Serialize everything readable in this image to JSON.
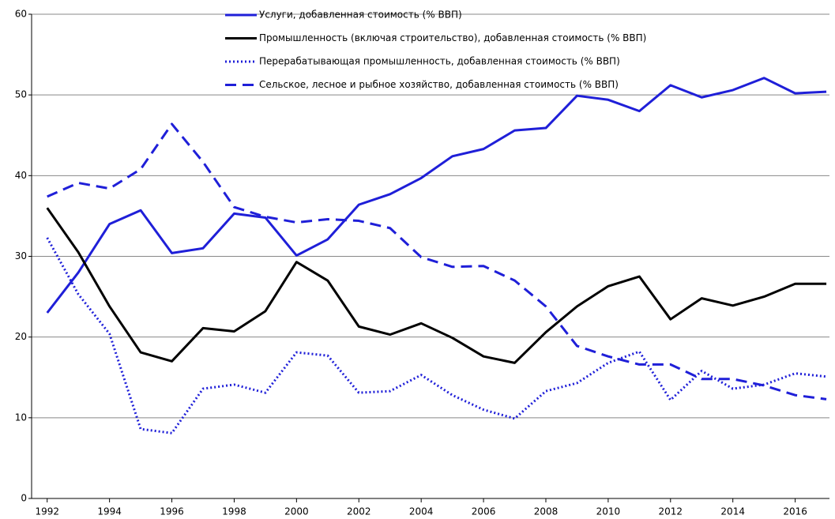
{
  "chart_data": {
    "type": "line",
    "x": [
      1992,
      1993,
      1994,
      1995,
      1996,
      1997,
      1998,
      1999,
      2000,
      2001,
      2002,
      2003,
      2004,
      2005,
      2006,
      2007,
      2008,
      2009,
      2010,
      2011,
      2012,
      2013,
      2014,
      2015,
      2016,
      2017
    ],
    "series": [
      {
        "name": "Услуги, добавленная стоимость (% ВВП)",
        "color": "#1f1fd8",
        "style": "solid",
        "values": [
          23,
          28,
          34,
          35.7,
          30.4,
          31,
          35.3,
          34.8,
          30.1,
          32.1,
          36.4,
          37.7,
          39.7,
          42.4,
          43.3,
          45.6,
          45.9,
          49.9,
          49.4,
          48,
          51.2,
          49.7,
          50.6,
          52.1,
          50.2,
          50.4
        ]
      },
      {
        "name": "Промышленность (включая строительство), добавленная стоимость (% ВВП)",
        "color": "#000000",
        "style": "solid",
        "values": [
          36,
          30.5,
          23.8,
          18.1,
          17,
          21.1,
          20.7,
          23.2,
          29.3,
          27,
          21.3,
          20.3,
          21.7,
          19.9,
          17.6,
          16.8,
          20.6,
          23.8,
          26.3,
          27.5,
          22.2,
          24.8,
          23.9,
          25,
          26.6,
          26.6
        ]
      },
      {
        "name": "Перерабатывающая промышленность, добавленная стоимость (% ВВП)",
        "color": "#1f1fd8",
        "style": "dotted",
        "values": [
          32.3,
          25.3,
          20.4,
          8.6,
          8.1,
          13.6,
          14.1,
          13.1,
          18.1,
          17.7,
          13.1,
          13.3,
          15.3,
          12.8,
          11,
          9.9,
          13.3,
          14.3,
          16.8,
          18.2,
          12.2,
          15.8,
          13.6,
          14.1,
          15.5,
          15.1
        ]
      },
      {
        "name": "Сельское, лесное и рыбное хозяйство, добавленная стоимость (% ВВП)",
        "color": "#1f1fd8",
        "style": "dashed",
        "values": [
          37.4,
          39.1,
          38.4,
          40.8,
          46.4,
          41.7,
          36.1,
          34.9,
          34.2,
          34.6,
          34.4,
          33.5,
          29.9,
          28.7,
          28.8,
          27,
          23.8,
          18.9,
          17.6,
          16.6,
          16.6,
          14.8,
          14.8,
          14,
          12.8,
          12.3
        ]
      }
    ],
    "xlim": [
      1991.5,
      2017.1
    ],
    "xticks": [
      1992,
      1994,
      1996,
      1998,
      2000,
      2002,
      2004,
      2006,
      2008,
      2010,
      2012,
      2014,
      2016
    ],
    "ylim": [
      0,
      60
    ],
    "yticks": [
      0,
      10,
      20,
      30,
      40,
      50,
      60
    ],
    "grid": true,
    "legend": "top"
  }
}
